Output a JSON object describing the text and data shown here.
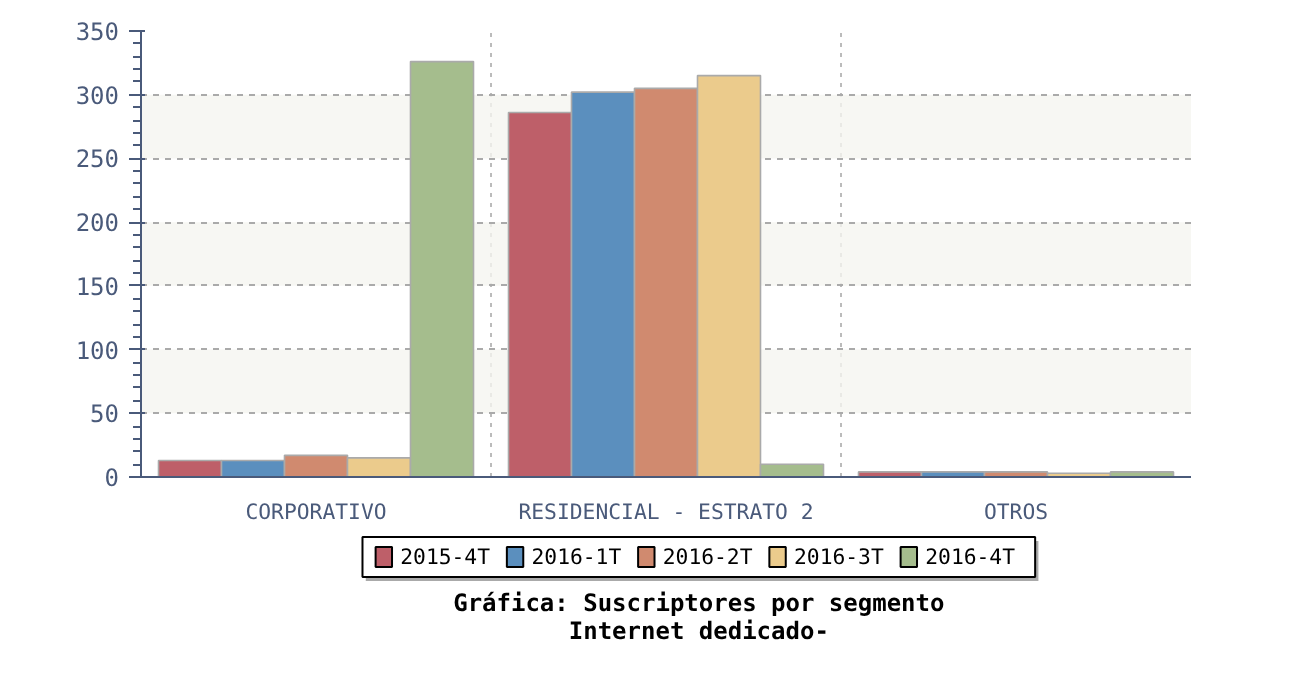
{
  "chart_data": {
    "type": "bar",
    "title": "Gráfica: Suscriptores por segmento",
    "subtitle": "Internet dedicado-",
    "categories": [
      "CORPORATIVO",
      "RESIDENCIAL - ESTRATO 2",
      "OTROS"
    ],
    "series": [
      {
        "name": "2015-4T",
        "color": "#be5f69",
        "values": [
          13,
          286,
          4
        ]
      },
      {
        "name": "2016-1T",
        "color": "#5b8fbe",
        "values": [
          13,
          302,
          4
        ]
      },
      {
        "name": "2016-2T",
        "color": "#d08a6f",
        "values": [
          17,
          305,
          4
        ]
      },
      {
        "name": "2016-3T",
        "color": "#ebcb8c",
        "values": [
          15,
          315,
          3
        ]
      },
      {
        "name": "2016-4T",
        "color": "#a5bd8d",
        "values": [
          326,
          10,
          4
        ]
      }
    ],
    "ylim": [
      0,
      350
    ],
    "yticks": [
      0,
      50,
      100,
      150,
      200,
      250,
      300,
      350
    ],
    "grid": true,
    "legend": "bottom"
  }
}
